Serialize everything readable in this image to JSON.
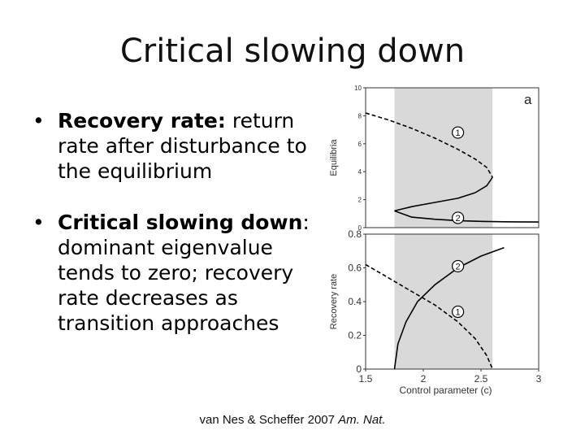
{
  "slide": {
    "title": "Critical slowing down"
  },
  "bullets": [
    {
      "symbol": "•",
      "bold": "Recovery rate:",
      "text": " return rate after disturbance to the equilibrium"
    },
    {
      "symbol": "•",
      "bold": "Critical slowing down",
      "text": ": dominant eigenvalue tends to zero; recovery rate decreases as transition approaches"
    }
  ],
  "citation": {
    "authors_year": "van Nes & Scheffer 2007 ",
    "journal": "Am. Nat."
  },
  "colors": {
    "shade": "#d9d9d9",
    "curve": "#000000"
  },
  "chart_data": [
    {
      "type": "line",
      "panel_label": "a",
      "ylabel": "Equilibria",
      "ylim": [
        0,
        10
      ],
      "ytick_labels": [
        "0",
        "2",
        "4",
        "6",
        "8",
        "10"
      ],
      "ytick_values": [
        0,
        2,
        4,
        6,
        8,
        10
      ],
      "xlim": [
        1.5,
        3
      ],
      "shaded_region": [
        1.75,
        2.6
      ],
      "series": [
        {
          "label_marker": "1",
          "style": "dashed",
          "x": [
            1.5,
            1.7,
            1.9,
            2.1,
            2.3,
            2.45,
            2.55,
            2.6
          ],
          "y": [
            8.2,
            7.7,
            7.1,
            6.4,
            5.6,
            4.9,
            4.3,
            3.6
          ]
        },
        {
          "style": "solid",
          "x": [
            2.6,
            2.55,
            2.45,
            2.3,
            2.1,
            1.9,
            1.8,
            1.75
          ],
          "y": [
            3.6,
            3.0,
            2.5,
            2.1,
            1.8,
            1.5,
            1.3,
            1.2
          ]
        },
        {
          "label_marker": "2",
          "style": "solid",
          "x": [
            1.75,
            1.9,
            2.1,
            2.3,
            2.5,
            2.7,
            3.0
          ],
          "y": [
            1.2,
            0.75,
            0.6,
            0.5,
            0.45,
            0.42,
            0.4
          ]
        }
      ]
    },
    {
      "type": "line",
      "ylabel": "Recovery rate",
      "xlabel": "Control parameter (c)",
      "ylim": [
        0,
        0.8
      ],
      "ytick_labels": [
        "0",
        "0.2",
        "0.4",
        "0.6",
        "0.8"
      ],
      "ytick_values": [
        0,
        0.2,
        0.4,
        0.6,
        0.8
      ],
      "xlim": [
        1.5,
        3
      ],
      "xtick_labels": [
        "1.5",
        "2",
        "2.5",
        "3"
      ],
      "xtick_values": [
        1.5,
        2,
        2.5,
        3
      ],
      "shaded_region": [
        1.75,
        2.6
      ],
      "series": [
        {
          "label_marker": "2",
          "style": "solid",
          "x": [
            1.75,
            1.78,
            1.85,
            1.95,
            2.1,
            2.3,
            2.5,
            2.7
          ],
          "y": [
            0,
            0.15,
            0.28,
            0.4,
            0.5,
            0.6,
            0.67,
            0.72
          ]
        },
        {
          "label_marker": "1",
          "style": "dashed",
          "x": [
            1.5,
            1.7,
            1.9,
            2.1,
            2.3,
            2.45,
            2.55,
            2.6
          ],
          "y": [
            0.62,
            0.54,
            0.46,
            0.38,
            0.28,
            0.18,
            0.08,
            0
          ]
        }
      ]
    }
  ]
}
